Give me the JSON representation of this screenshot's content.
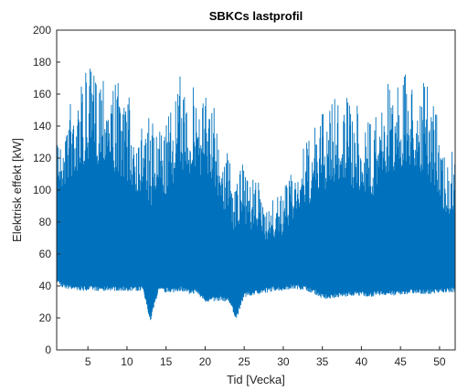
{
  "chart_data": {
    "type": "line",
    "title": "SBKCs lastprofil",
    "xlabel": "Tid [Vecka]",
    "ylabel": "Elektrisk effekt [kW]",
    "xlim": [
      1,
      52
    ],
    "ylim": [
      0,
      200
    ],
    "xticks": [
      5,
      10,
      15,
      20,
      25,
      30,
      35,
      40,
      45,
      50
    ],
    "yticks": [
      0,
      20,
      40,
      60,
      80,
      100,
      120,
      140,
      160,
      180,
      200
    ],
    "grid": false,
    "line_color": "#0072BD",
    "series": [
      {
        "x": [
          1,
          2,
          3,
          4,
          5,
          6,
          7,
          8,
          9,
          10,
          11,
          12,
          13,
          14,
          15,
          16,
          17,
          18,
          19,
          20,
          21,
          22,
          23,
          24,
          25,
          26,
          27,
          28,
          29,
          30,
          31,
          32,
          33,
          34,
          35,
          36,
          37,
          38,
          39,
          40,
          41,
          42,
          43,
          44,
          45,
          46,
          47,
          48,
          49,
          50,
          51,
          52
        ],
        "min": [
          42,
          38,
          38,
          37,
          37,
          37,
          37,
          37,
          37,
          37,
          37,
          37,
          18,
          36,
          36,
          36,
          37,
          35,
          35,
          30,
          30,
          31,
          30,
          19,
          33,
          34,
          35,
          36,
          37,
          37,
          38,
          38,
          37,
          35,
          32,
          32,
          33,
          33,
          34,
          34,
          33,
          34,
          34,
          34,
          34,
          35,
          35,
          35,
          35,
          36,
          36,
          36
        ],
        "max": [
          145,
          150,
          162,
          172,
          176,
          178,
          187,
          170,
          168,
          162,
          150,
          146,
          145,
          140,
          145,
          158,
          175,
          170,
          168,
          164,
          158,
          140,
          124,
          112,
          118,
          108,
          104,
          93,
          95,
          100,
          112,
          122,
          132,
          140,
          150,
          160,
          162,
          158,
          155,
          150,
          146,
          150,
          165,
          170,
          172,
          175,
          170,
          170,
          160,
          140,
          120,
          128
        ]
      }
    ]
  }
}
